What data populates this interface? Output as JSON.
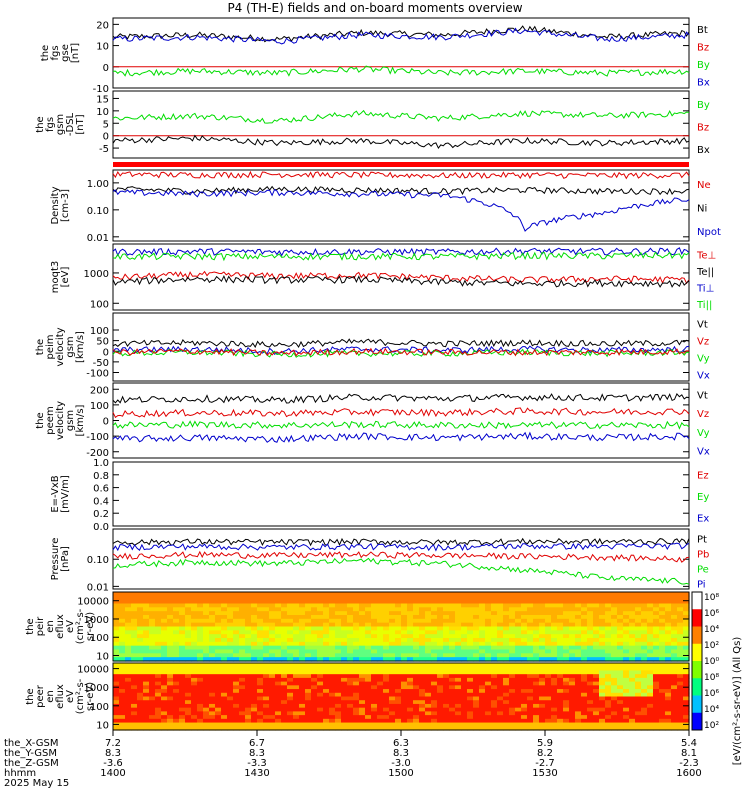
{
  "title": "P4 (TH-E) fields and on-board moments overview",
  "colors": {
    "black": "#000000",
    "red": "#e00000",
    "green": "#00dd00",
    "blue": "#0000cc"
  },
  "chart_data": {
    "type": "line",
    "x_ticks": [
      "1400",
      "1430",
      "1500",
      "1530",
      "1600"
    ],
    "panels": [
      {
        "id": "fgs-gse",
        "ylabel": [
          "the",
          "fgs",
          "gse",
          "[nT]"
        ],
        "ylim": [
          -10,
          23
        ],
        "log": false,
        "ticks": [
          "20",
          "10",
          "0",
          "-10"
        ],
        "tickvals": [
          20,
          10,
          0,
          -10
        ],
        "legend": [
          {
            "name": "Bt",
            "color": "black"
          },
          {
            "name": "Bz",
            "color": "red"
          },
          {
            "name": "By",
            "color": "green"
          },
          {
            "name": "Bx",
            "color": "blue"
          }
        ],
        "series": [
          {
            "color": "black",
            "base": [
              14,
              15,
              13,
              16,
              15,
              18,
              14,
              16
            ]
          },
          {
            "color": "blue",
            "base": [
              13,
              14,
              12,
              15,
              14,
              17,
              13,
              15
            ]
          },
          {
            "color": "red",
            "base": [
              0,
              0,
              0,
              0,
              0,
              0,
              0,
              0
            ]
          },
          {
            "color": "green",
            "base": [
              -3,
              -2,
              -3,
              -1,
              -3,
              -2,
              -3,
              -2
            ]
          }
        ]
      },
      {
        "id": "fgs-gsm",
        "ylabel": [
          "the",
          "fgs",
          "gsm",
          "-DSL",
          "[nT]"
        ],
        "ylim": [
          -9,
          18
        ],
        "log": false,
        "ticks": [
          "15",
          "10",
          "5",
          "0",
          "-5"
        ],
        "tickvals": [
          15,
          10,
          5,
          0,
          -5
        ],
        "legend": [
          {
            "name": "By",
            "color": "green"
          },
          {
            "name": "Bz",
            "color": "red"
          },
          {
            "name": "Bx",
            "color": "black"
          }
        ],
        "series": [
          {
            "color": "green",
            "base": [
              7,
              8,
              6,
              9,
              7,
              9,
              8,
              9
            ]
          },
          {
            "color": "red",
            "base": [
              0,
              0,
              0,
              0,
              0,
              0,
              0,
              0
            ]
          },
          {
            "color": "black",
            "base": [
              -2,
              -1,
              -3,
              -2,
              -4,
              -2,
              -3,
              -2
            ]
          }
        ]
      },
      {
        "id": "density",
        "ylabel": [
          "Density",
          "[cm-3]"
        ],
        "ylim": [
          0.007,
          3
        ],
        "log": true,
        "ticks": [
          "1.00",
          "0.10",
          "0.01"
        ],
        "tickvals": [
          1,
          0.1,
          0.01
        ],
        "legend": [
          {
            "name": "Ne",
            "color": "red"
          },
          {
            "name": "Ni",
            "color": "black"
          },
          {
            "name": "Npot",
            "color": "blue"
          }
        ],
        "series": [
          {
            "color": "red",
            "base": [
              2.1,
              2.0,
              2.1,
              2.0,
              1.9,
              2.0,
              1.9,
              2.0
            ]
          },
          {
            "color": "black",
            "base": [
              0.6,
              0.5,
              0.6,
              0.55,
              0.5,
              0.55,
              0.5,
              0.5
            ]
          },
          {
            "color": "blue",
            "base": [
              0.45,
              0.4,
              0.45,
              0.4,
              0.35,
              0.02,
              0.08,
              0.25
            ]
          }
        ]
      },
      {
        "id": "temp",
        "ylabel": [
          "moqt3",
          "[eV]"
        ],
        "ylim": [
          60,
          9000
        ],
        "log": true,
        "ticks": [
          "1000",
          "100"
        ],
        "tickvals": [
          1000,
          100
        ],
        "legend": [
          {
            "name": "Te⊥",
            "color": "red"
          },
          {
            "name": "Te||",
            "color": "black"
          },
          {
            "name": "Ti⊥",
            "color": "blue"
          },
          {
            "name": "Ti||",
            "color": "green"
          }
        ],
        "series": [
          {
            "color": "blue",
            "base": [
              5000,
              5200,
              5000,
              5100,
              5000,
              5300,
              5200,
              5400
            ]
          },
          {
            "color": "green",
            "base": [
              3500,
              3600,
              3500,
              3600,
              3500,
              3800,
              3700,
              3900
            ]
          },
          {
            "color": "red",
            "base": [
              700,
              900,
              800,
              850,
              700,
              600,
              650,
              600
            ]
          },
          {
            "color": "black",
            "base": [
              500,
              650,
              600,
              620,
              500,
              450,
              480,
              450
            ]
          }
        ]
      },
      {
        "id": "velocity-gsm",
        "ylabel": [
          "the",
          "peim",
          "velocity",
          "gsm",
          "[km/s]"
        ],
        "ylim": [
          -140,
          180
        ],
        "log": false,
        "ticks": [
          "100",
          "50",
          "0",
          "-50",
          "-100"
        ],
        "tickvals": [
          100,
          50,
          0,
          -50,
          -100
        ],
        "legend": [
          {
            "name": "Vt",
            "color": "black"
          },
          {
            "name": "Vz",
            "color": "red"
          },
          {
            "name": "Vy",
            "color": "green"
          },
          {
            "name": "Vx",
            "color": "blue"
          }
        ],
        "series": [
          {
            "color": "black",
            "base": [
              35,
              40,
              30,
              45,
              35,
              40,
              35,
              40
            ]
          },
          {
            "color": "blue",
            "base": [
              5,
              10,
              0,
              10,
              5,
              10,
              5,
              10
            ]
          },
          {
            "color": "green",
            "base": [
              -10,
              -5,
              -15,
              -10,
              -10,
              -5,
              -10,
              -5
            ]
          },
          {
            "color": "red",
            "base": [
              -5,
              0,
              -10,
              0,
              -5,
              -5,
              -5,
              0
            ]
          }
        ]
      },
      {
        "id": "velocity-gsm-e",
        "ylabel": [
          "the",
          "peem",
          "velocity",
          "gsm",
          "[km/s]"
        ],
        "ylim": [
          -240,
          240
        ],
        "log": false,
        "ticks": [
          "200",
          "100",
          "0",
          "-100",
          "-200"
        ],
        "tickvals": [
          200,
          100,
          0,
          -100,
          -200
        ],
        "legend": [
          {
            "name": "Vt",
            "color": "black"
          },
          {
            "name": "Vz",
            "color": "red"
          },
          {
            "name": "Vy",
            "color": "green"
          },
          {
            "name": "Vx",
            "color": "blue"
          }
        ],
        "series": [
          {
            "color": "black",
            "base": [
              130,
              140,
              130,
              150,
              140,
              150,
              145,
              150
            ]
          },
          {
            "color": "red",
            "base": [
              40,
              50,
              45,
              55,
              50,
              60,
              55,
              60
            ]
          },
          {
            "color": "green",
            "base": [
              -30,
              -25,
              -30,
              -25,
              -30,
              -30,
              -30,
              -30
            ]
          },
          {
            "color": "blue",
            "base": [
              -120,
              -110,
              -120,
              -100,
              -110,
              -100,
              -110,
              -100
            ]
          }
        ]
      },
      {
        "id": "efield",
        "ylabel": [
          "E=-VxB",
          "[mV/m]"
        ],
        "ylim": [
          0,
          1
        ],
        "log": false,
        "ticks": [
          "1.0",
          "0.8",
          "0.6",
          "0.4",
          "0.2",
          "0.0"
        ],
        "tickvals": [
          1.0,
          0.8,
          0.6,
          0.4,
          0.2,
          0.0
        ],
        "legend": [
          {
            "name": "Ez",
            "color": "red"
          },
          {
            "name": "Ey",
            "color": "green"
          },
          {
            "name": "Ex",
            "color": "blue"
          }
        ],
        "series": []
      },
      {
        "id": "pressure",
        "ylabel": [
          "Pressure",
          "[nPa]"
        ],
        "ylim": [
          0.008,
          1.3
        ],
        "log": true,
        "ticks": [
          "0.10",
          "0.01"
        ],
        "tickvals": [
          0.1,
          0.01
        ],
        "legend": [
          {
            "name": "Pt",
            "color": "black"
          },
          {
            "name": "Pb",
            "color": "red"
          },
          {
            "name": "Pe",
            "color": "green"
          },
          {
            "name": "Pi",
            "color": "blue"
          }
        ],
        "series": [
          {
            "color": "black",
            "base": [
              0.42,
              0.45,
              0.43,
              0.45,
              0.42,
              0.46,
              0.45,
              0.47
            ]
          },
          {
            "color": "blue",
            "base": [
              0.28,
              0.3,
              0.28,
              0.3,
              0.28,
              0.31,
              0.3,
              0.32
            ]
          },
          {
            "color": "red",
            "base": [
              0.13,
              0.15,
              0.14,
              0.15,
              0.14,
              0.13,
              0.12,
              0.1
            ]
          },
          {
            "color": "green",
            "base": [
              0.06,
              0.08,
              0.07,
              0.09,
              0.07,
              0.04,
              0.02,
              0.015
            ]
          }
        ]
      },
      {
        "id": "spec-i",
        "type": "heatmap",
        "ylabel": [
          "the",
          "peir",
          "en",
          "eflux",
          "eV",
          "(cm²-s-",
          "sr-eV)"
        ],
        "log": true,
        "ticks": [
          "10000",
          "1000",
          "100",
          "10"
        ],
        "tickvals": [
          10000,
          1000,
          100,
          10
        ],
        "ylim": [
          5,
          30000
        ]
      },
      {
        "id": "spec-e",
        "type": "heatmap",
        "ylabel": [
          "the",
          "peer",
          "en",
          "eflux",
          "eV",
          "(cm²-s-",
          "sr-eV)"
        ],
        "log": true,
        "ticks": [
          "10000",
          "1000",
          "100",
          "10"
        ],
        "tickvals": [
          10000,
          1000,
          100,
          10
        ],
        "ylim": [
          5,
          20000
        ]
      }
    ],
    "colorbar": {
      "label": "[eV/(cm²-s-sr-eV)] (All Qs)",
      "ticks": [
        "10⁸",
        "10⁶",
        "10⁴",
        "10²",
        "10⁰",
        "10⁸",
        "10⁶",
        "10⁴",
        "10²"
      ]
    },
    "ephem": {
      "labels": [
        "the_X-GSM",
        "the_Y-GSM",
        "the_Z-GSM",
        "hhmm",
        "2025 May 15"
      ],
      "rows": [
        [
          "7.2",
          "6.7",
          "6.3",
          "5.9",
          "5.4"
        ],
        [
          "8.3",
          "8.3",
          "8.3",
          "8.2",
          "8.1"
        ],
        [
          "-3.6",
          "-3.3",
          "-3.0",
          "-2.7",
          "-2.3"
        ],
        [
          "1400",
          "1430",
          "1500",
          "1530",
          "1600"
        ]
      ]
    }
  }
}
